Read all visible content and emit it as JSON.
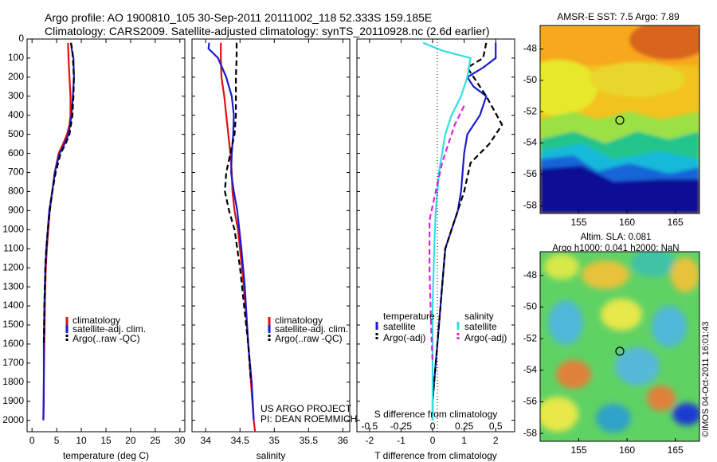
{
  "header": {
    "line1": "Argo profile: AO 1900810_105 30-Sep-2011 20111002_118 52.333S 159.185E",
    "line2": "Climatology: CARS2009. Satellite-adjusted climatology: synTS_20110928.nc (2.6d earlier)"
  },
  "colors": {
    "climatology": "#e01010",
    "satellite_adj": "#1a1ad0",
    "argo": "#000000",
    "s_satellite": "#30e0e0",
    "s_argo": "#e020e0"
  },
  "credit": "©IMOS 04-Oct-2011 16:01:43",
  "chart_data": [
    {
      "type": "line",
      "xlabel": "temperature (deg C)",
      "ylabel": "",
      "xlim": [
        -1,
        31
      ],
      "ylim": [
        2060,
        0
      ],
      "xticks": [
        "0",
        "5",
        "10",
        "15",
        "20",
        "25",
        "30"
      ],
      "yticks": [
        "0",
        "100",
        "200",
        "300",
        "400",
        "500",
        "600",
        "700",
        "800",
        "900",
        "1000",
        "1100",
        "1200",
        "1300",
        "1400",
        "1500",
        "1600",
        "1700",
        "1800",
        "1900",
        "2000"
      ],
      "legend": [
        "climatology",
        "satellite-adj. clim.",
        "Argo(..raw -QC)"
      ],
      "series": [
        {
          "name": "climatology",
          "style": "solid",
          "color": "#e01010",
          "x": [
            7.3,
            7.4,
            7.6,
            7.8,
            7.8,
            7.6,
            7.1,
            6.3,
            5.4,
            4.6,
            4.1,
            3.6,
            3.3,
            3.0,
            2.8,
            2.6,
            2.5,
            2.4,
            2.4,
            2.3
          ],
          "y": [
            20,
            100,
            200,
            300,
            400,
            450,
            500,
            550,
            600,
            700,
            800,
            900,
            1000,
            1100,
            1200,
            1400,
            1600,
            1800,
            1900,
            2000
          ]
        },
        {
          "name": "satellite-adj. clim.",
          "style": "solid",
          "color": "#1a1ad0",
          "x": [
            7.9,
            8.1,
            8.4,
            8.5,
            8.3,
            8.0,
            7.4,
            6.6,
            5.6,
            4.6,
            4.1,
            3.5,
            3.2,
            2.9,
            2.7,
            2.5,
            2.4,
            2.4,
            2.3
          ],
          "y": [
            20,
            60,
            100,
            200,
            300,
            400,
            500,
            550,
            600,
            700,
            800,
            900,
            1000,
            1100,
            1200,
            1400,
            1600,
            1800,
            2000
          ]
        },
        {
          "name": "Argo(..raw -QC)",
          "style": "dashed",
          "color": "#000000",
          "x": [
            7.9,
            8.2,
            8.3,
            8.5,
            8.4,
            8.2,
            7.6,
            6.8,
            5.8,
            4.8,
            4.1,
            3.6,
            3.2,
            2.9,
            2.7,
            2.5,
            2.4
          ],
          "y": [
            20,
            60,
            100,
            200,
            300,
            400,
            500,
            550,
            600,
            700,
            800,
            900,
            1000,
            1100,
            1200,
            1400,
            1600
          ]
        }
      ]
    },
    {
      "type": "line",
      "xlabel": "salinity",
      "xlim": [
        33.8,
        36.1
      ],
      "ylim": [
        2060,
        0
      ],
      "xticks": [
        "34",
        "34.5",
        "35",
        "35.5",
        "36"
      ],
      "legend": [
        "climatology",
        "satellite-adj. clim.",
        "Argo(..raw -QC)"
      ],
      "annotations": [
        "US ARGO PROJECT",
        "PI: DEAN ROEMMICH"
      ],
      "series": [
        {
          "name": "climatology",
          "style": "solid",
          "color": "#e01010",
          "x": [
            34.22,
            34.22,
            34.23,
            34.27,
            34.3,
            34.33,
            34.36,
            34.38,
            34.39,
            34.42,
            34.47,
            34.53,
            34.58,
            34.62,
            34.66,
            34.7,
            34.72
          ],
          "y": [
            20,
            100,
            200,
            300,
            400,
            500,
            600,
            700,
            800,
            900,
            1000,
            1200,
            1400,
            1600,
            1800,
            2000,
            2060
          ]
        },
        {
          "name": "satellite-adj. clim.",
          "style": "solid",
          "color": "#1a1ad0",
          "x": [
            34.05,
            34.04,
            34.18,
            34.3,
            34.38,
            34.41,
            34.4,
            34.38,
            34.37,
            34.41,
            34.46,
            34.52,
            34.57,
            34.62,
            34.67,
            34.7
          ],
          "y": [
            20,
            50,
            100,
            200,
            300,
            400,
            500,
            600,
            700,
            800,
            900,
            1100,
            1300,
            1600,
            1800,
            2000
          ]
        },
        {
          "name": "Argo(..raw -QC)",
          "style": "dashed",
          "color": "#000000",
          "x": [
            34.45,
            34.45,
            34.44,
            34.44,
            34.44,
            34.42,
            34.36,
            34.3,
            34.28,
            34.34,
            34.42,
            34.5,
            34.56,
            34.62,
            34.66
          ],
          "y": [
            20,
            100,
            200,
            300,
            400,
            500,
            600,
            700,
            800,
            900,
            1000,
            1200,
            1400,
            1600,
            1800
          ]
        }
      ]
    },
    {
      "type": "line",
      "xlabel": "T difference from climatology",
      "x2label": "S difference from climatology",
      "xlim": [
        -2.4,
        2.6
      ],
      "ylim": [
        2060,
        0
      ],
      "xticks": [
        "-2",
        "-1",
        "0",
        "1",
        "2"
      ],
      "x2ticks": [
        "-0.5",
        "-0.25",
        "0",
        "0.25",
        "0.5"
      ],
      "legend_titles": [
        "temperature",
        "salinity"
      ],
      "legend": [
        "satellite",
        "Argo(-adj)",
        "satellite",
        "Argo(-adj)"
      ],
      "series": [
        {
          "name": "satellite",
          "group": "temperature",
          "style": "solid",
          "color": "#1a1ad0",
          "x": [
            2.0,
            2.0,
            1.6,
            1.1,
            1.3,
            1.7,
            1.5,
            1.1,
            1.0,
            0.9,
            0.8,
            0.6,
            0.4,
            0.3,
            0.2,
            0.1,
            0.0,
            0.0
          ],
          "y": [
            20,
            100,
            150,
            200,
            250,
            300,
            400,
            500,
            600,
            800,
            900,
            1000,
            1100,
            1300,
            1500,
            1700,
            1900,
            2000
          ]
        },
        {
          "name": "Argo(-adj)",
          "group": "temperature",
          "style": "dashed",
          "color": "#000000",
          "x": [
            1.7,
            1.6,
            1.1,
            1.3,
            1.7,
            2.2,
            1.8,
            1.2,
            1.0,
            0.8,
            0.6,
            0.4,
            0.3,
            0.2,
            0.1,
            0.0
          ],
          "y": [
            20,
            100,
            150,
            200,
            300,
            450,
            550,
            650,
            800,
            900,
            1000,
            1100,
            1300,
            1500,
            1700,
            1900
          ]
        },
        {
          "name": "satellite",
          "group": "salinity",
          "style": "solid",
          "color": "#30e0e0",
          "x": [
            -0.3,
            0.3,
            1.2,
            1.1,
            0.9,
            0.6,
            0.4,
            0.2,
            0.1,
            0.05,
            0.0,
            0.0,
            0.0
          ],
          "y": [
            20,
            60,
            100,
            200,
            300,
            400,
            500,
            700,
            900,
            1100,
            1400,
            1800,
            2000
          ]
        },
        {
          "name": "Argo(-adj)",
          "group": "salinity",
          "style": "dashed",
          "color": "#e020e0",
          "x": [
            1.0,
            0.7,
            0.5,
            0.3,
            0.1,
            -0.1,
            -0.1,
            -0.05,
            0.0
          ],
          "y": [
            350,
            450,
            550,
            650,
            800,
            950,
            1200,
            1500,
            1700
          ]
        }
      ]
    },
    {
      "type": "heatmap",
      "title": "AMSR-E SST: 7.5 Argo: 7.89",
      "xlim": [
        151,
        167.5
      ],
      "ylim": [
        -58.5,
        -46.5
      ],
      "xticks": [
        "155",
        "160",
        "165"
      ],
      "yticks": [
        "-48",
        "-50",
        "-52",
        "-54",
        "-56",
        "-58"
      ],
      "marker": {
        "lon": 159.185,
        "lat": -52.333
      }
    },
    {
      "type": "heatmap",
      "title": "Altim. SLA: 0.081",
      "subtitle": "Argo h1000: 0.041 h2000: NaN",
      "xlim": [
        151,
        167.5
      ],
      "ylim": [
        -58.5,
        -46.5
      ],
      "xticks": [
        "155",
        "160",
        "165"
      ],
      "yticks": [
        "-48",
        "-50",
        "-52",
        "-54",
        "-56",
        "-58"
      ],
      "marker": {
        "lon": 159.185,
        "lat": -52.333
      }
    }
  ]
}
